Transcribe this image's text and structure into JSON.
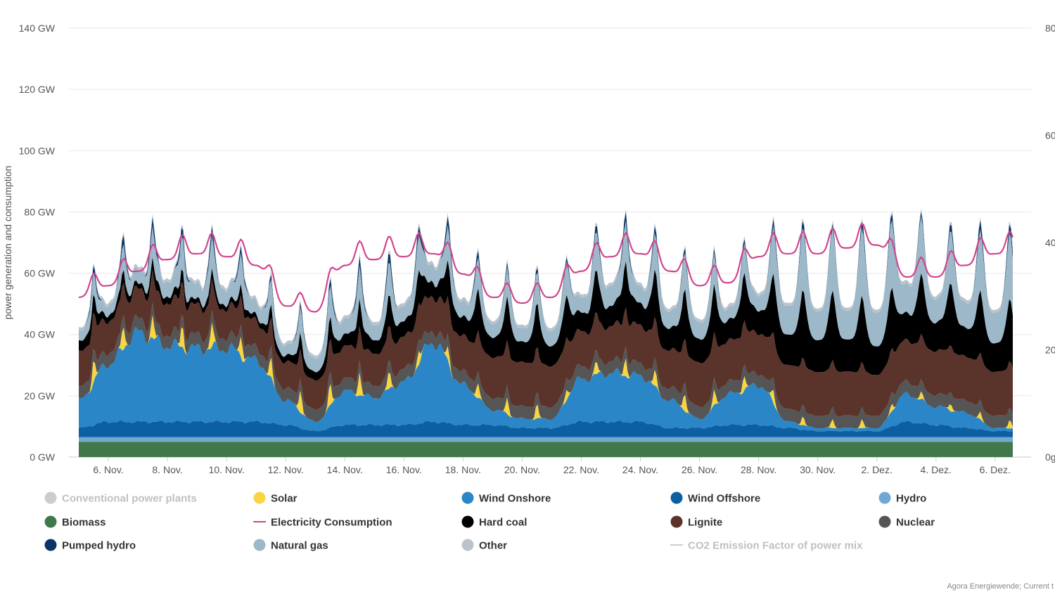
{
  "chart_data": {
    "type": "area",
    "stacked": true,
    "y_axis_left": {
      "label": "power generation and consumption",
      "ticks": [
        "0 GW",
        "20 GW",
        "40 GW",
        "60 GW",
        "80 GW",
        "100 GW",
        "120 GW",
        "140 GW"
      ],
      "ylim": [
        0,
        140
      ],
      "unit": "GW"
    },
    "y_axis_right": {
      "ticks": [
        "0g",
        "20",
        "40",
        "60",
        "80"
      ],
      "ylim": [
        0,
        80
      ]
    },
    "x_axis": {
      "ticks": [
        "6. Nov.",
        "8. Nov.",
        "10. Nov.",
        "12. Nov.",
        "14. Nov.",
        "16. Nov.",
        "18. Nov.",
        "20. Nov.",
        "22. Nov.",
        "24. Nov.",
        "26. Nov.",
        "28. Nov.",
        "30. Nov.",
        "2. Dez.",
        "4. Dez.",
        "6. Dez."
      ],
      "range_days": [
        4.7,
        36.6
      ]
    },
    "grid": true,
    "legend_position": "bottom",
    "legend": [
      {
        "name": "Conventional power plants",
        "color": "#cccccc",
        "visible": false
      },
      {
        "name": "Solar",
        "color": "#f9d543",
        "visible": true
      },
      {
        "name": "Wind Onshore",
        "color": "#2a86c6",
        "visible": true
      },
      {
        "name": "Wind Offshore",
        "color": "#0d5fa3",
        "visible": true
      },
      {
        "name": "Hydro",
        "color": "#72a7d2",
        "visible": true
      },
      {
        "name": "Biomass",
        "color": "#40784a",
        "visible": true
      },
      {
        "name": "Electricity Consumption",
        "color": "#d0458f",
        "visible": true
      },
      {
        "name": "Hard coal",
        "color": "#000000",
        "visible": true
      },
      {
        "name": "Lignite",
        "color": "#5a342b",
        "visible": true
      },
      {
        "name": "Nuclear",
        "color": "#555555",
        "visible": true
      },
      {
        "name": "Pumped hydro",
        "color": "#0b3566",
        "visible": true
      },
      {
        "name": "Natural gas",
        "color": "#9db9c9",
        "visible": true
      },
      {
        "name": "Other",
        "color": "#bcc3cb",
        "visible": true
      },
      {
        "name": "CO2 Emission Factor of power mix",
        "color": "#cccccc",
        "visible": false
      }
    ],
    "daily_x": [
      5,
      6,
      7,
      8,
      9,
      10,
      11,
      12,
      13,
      14,
      15,
      16,
      17,
      18,
      19,
      20,
      21,
      22,
      23,
      24,
      25,
      26,
      27,
      28,
      29,
      30,
      31,
      32,
      33,
      34,
      35,
      36
    ],
    "series": [
      {
        "name": "Biomass",
        "values": [
          5,
          5,
          5,
          5,
          5,
          5,
          5,
          5,
          5,
          5,
          5,
          5,
          5,
          5,
          5,
          5,
          5,
          5,
          5,
          5,
          5,
          5,
          5,
          5,
          5,
          5,
          5,
          5,
          5,
          5,
          5,
          5
        ]
      },
      {
        "name": "Hydro",
        "values": [
          1.5,
          1.5,
          1.5,
          1.5,
          1.5,
          1.5,
          1.5,
          1.5,
          1.5,
          1.5,
          1.5,
          1.5,
          1.5,
          1.5,
          1.5,
          1.5,
          1.5,
          1.5,
          1.5,
          1.5,
          1.5,
          1.5,
          1.5,
          1.5,
          1.5,
          1.5,
          1.5,
          1.5,
          1.5,
          1.5,
          1.5,
          1.5
        ]
      },
      {
        "name": "Wind Offshore",
        "values": [
          3,
          5,
          5,
          5,
          5,
          5,
          5,
          4,
          2,
          4,
          4,
          4,
          5,
          4,
          4,
          3,
          3,
          5,
          5,
          5,
          3,
          3,
          4,
          4,
          3,
          2,
          2,
          2,
          5,
          4,
          3,
          2
        ]
      },
      {
        "name": "Wind Onshore",
        "values": [
          9,
          19,
          29,
          25,
          24,
          24,
          20,
          8,
          3,
          11,
          9,
          14,
          26,
          13,
          5,
          3,
          3,
          14,
          16,
          15,
          9,
          3,
          10,
          13,
          2,
          1,
          1,
          1,
          9,
          6,
          5,
          1
        ]
      },
      {
        "name": "Solar",
        "values": [
          7,
          8,
          8,
          7,
          8,
          8,
          6,
          7,
          8,
          7,
          8,
          4,
          5,
          4,
          6,
          5,
          5,
          2,
          7,
          5,
          6,
          6,
          4,
          6,
          3,
          3,
          3,
          3,
          2,
          3,
          2,
          3
        ]
      },
      {
        "name": "Nuclear",
        "values": [
          4,
          4,
          4,
          4,
          4,
          4,
          4,
          4,
          4,
          4,
          4,
          4,
          4,
          4,
          4,
          4,
          4,
          4,
          4,
          4,
          4,
          4,
          4,
          4,
          4,
          4,
          4,
          4,
          4,
          4,
          4,
          4
        ]
      },
      {
        "name": "Lignite",
        "values": [
          12,
          11,
          10,
          11,
          10,
          10,
          9,
          9,
          10,
          11,
          11,
          11,
          12,
          12,
          14,
          15,
          14,
          12,
          12,
          13,
          13,
          15,
          14,
          14,
          15,
          15,
          15,
          14,
          14,
          15,
          15,
          15
        ]
      },
      {
        "name": "Hard coal",
        "values": [
          6,
          4,
          3,
          4,
          3,
          3,
          3,
          4,
          5,
          7,
          8,
          9,
          9,
          11,
          12,
          12,
          12,
          11,
          12,
          13,
          13,
          14,
          12,
          14,
          18,
          19,
          19,
          17,
          16,
          17,
          17,
          17
        ]
      },
      {
        "name": "Natural gas",
        "values": [
          6,
          6,
          8,
          9,
          9,
          9,
          8,
          6,
          8,
          9,
          9,
          9,
          10,
          9,
          8,
          8,
          9,
          9,
          12,
          10,
          10,
          10,
          7,
          9,
          17,
          17,
          17,
          20,
          17,
          14,
          15,
          18
        ]
      },
      {
        "name": "Pumped hydro",
        "values": [
          1,
          2,
          2,
          2,
          2,
          2,
          1,
          1,
          1,
          2,
          2,
          2,
          2,
          2,
          1,
          1,
          1,
          1,
          2,
          2,
          1,
          1,
          1,
          1,
          2,
          1,
          1,
          2,
          1,
          1,
          2,
          2
        ]
      },
      {
        "name": "Other",
        "values": [
          1,
          1,
          1,
          1,
          1,
          1,
          1,
          1,
          1,
          1,
          1,
          1,
          1,
          1,
          1,
          1,
          1,
          1,
          1,
          1,
          1,
          1,
          1,
          1,
          1,
          1,
          1,
          1,
          1,
          1,
          1,
          1
        ]
      },
      {
        "name": "Electricity Consumption",
        "values": [
          55,
          59,
          64,
          68,
          70,
          69,
          66,
          52,
          50,
          66,
          68,
          69,
          70,
          63,
          55,
          53,
          55,
          64,
          69,
          70,
          64,
          59,
          60,
          69,
          70,
          70,
          72,
          73,
          62,
          62,
          66,
          70
        ]
      }
    ]
  },
  "credits": "Agora Energiewende; Current t"
}
